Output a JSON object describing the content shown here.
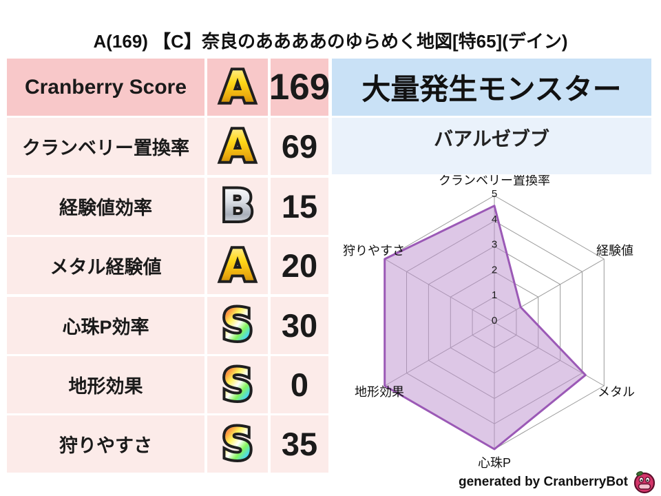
{
  "title": "A(169) 【C】奈良のああああのゆらめく地図[特65](デイン)",
  "table": {
    "rows": [
      {
        "label": "Cranberry Score",
        "grade": "A",
        "grade_style": "gold",
        "value": "169",
        "highlight": true
      },
      {
        "label": "クランベリー置換率",
        "grade": "A",
        "grade_style": "gold",
        "value": "69",
        "highlight": false
      },
      {
        "label": "経験値効率",
        "grade": "B",
        "grade_style": "silver",
        "value": "15",
        "highlight": false
      },
      {
        "label": "メタル経験値",
        "grade": "A",
        "grade_style": "gold",
        "value": "20",
        "highlight": false
      },
      {
        "label": "心珠P効率",
        "grade": "S",
        "grade_style": "rainbow",
        "value": "30",
        "highlight": false
      },
      {
        "label": "地形効果",
        "grade": "S",
        "grade_style": "rainbow",
        "value": "0",
        "highlight": false
      },
      {
        "label": "狩りやすさ",
        "grade": "S",
        "grade_style": "rainbow",
        "value": "35",
        "highlight": false
      }
    ]
  },
  "monster_panel": {
    "header": "大量発生モンスター",
    "name": "バアルゼブブ"
  },
  "chart_data": {
    "type": "radar",
    "categories": [
      "クランベリー置換率",
      "経験値",
      "メタル",
      "心珠P",
      "地形効果",
      "狩りやすさ"
    ],
    "values": [
      4.6,
      1.2,
      4.15,
      5,
      5,
      5
    ],
    "rmax": 5,
    "ticks": [
      0,
      1,
      2,
      3,
      4,
      5
    ],
    "grid": true,
    "legend": "none",
    "fill_color": "#bb8fce",
    "fill_opacity": 0.5,
    "line_color": "#9b59b6",
    "grid_color": "#9a9a9a",
    "tick_color": "#1a1a1a"
  },
  "footer": {
    "credit": "generated by CranberryBot",
    "icon": "cranberry-face"
  },
  "colors": {
    "row_highlight_bg": "#f8c8c9",
    "row_bg": "#fcebe9",
    "monster_header_bg": "#c9e1f6",
    "monster_name_bg": "#eaf2fb",
    "grade_gold": "#ffd818",
    "grade_silver": "#c6cbd4",
    "radar_fill": "#dcc7e7",
    "radar_line": "#9b59b6"
  }
}
